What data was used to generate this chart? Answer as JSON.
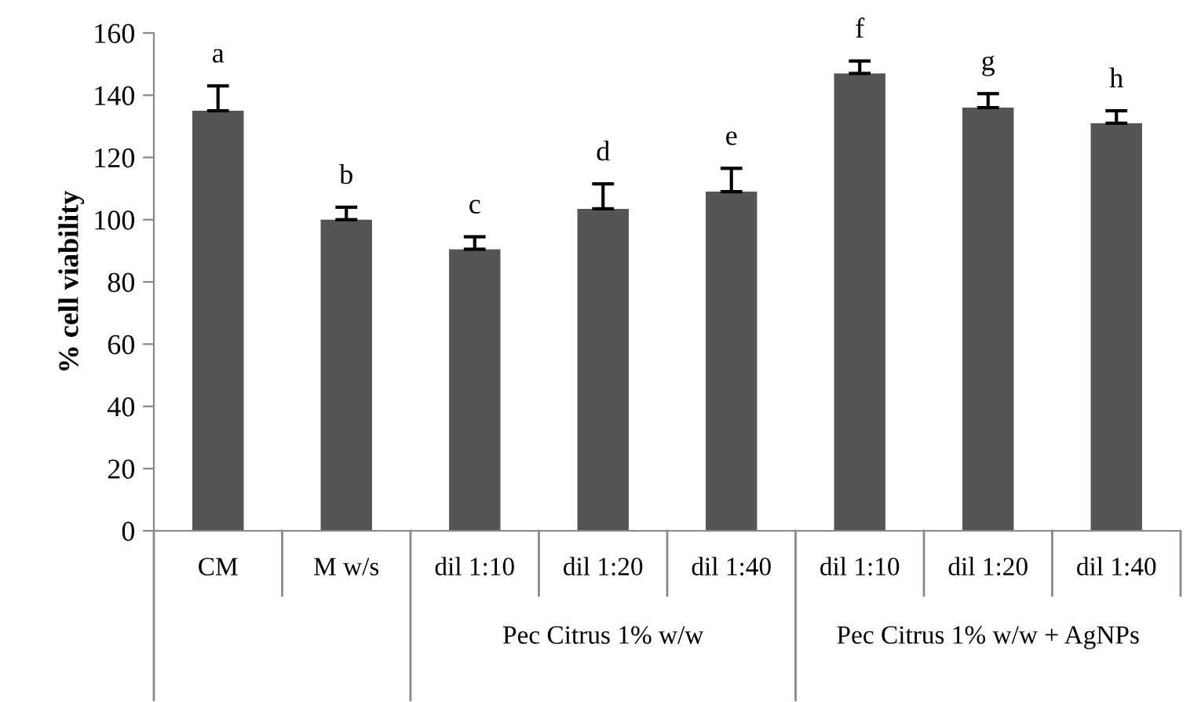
{
  "chart_data": {
    "type": "bar",
    "ylabel": "% cell viability",
    "categories": [
      "CM",
      "M w/s",
      "dil 1:10",
      "dil 1:20",
      "dil 1:40",
      "dil 1:10",
      "dil 1:20",
      "dil 1:40"
    ],
    "values": [
      135,
      100,
      90.5,
      103.5,
      109,
      147,
      136,
      131
    ],
    "errors": [
      8,
      4,
      4,
      8,
      7.5,
      4,
      4.5,
      4
    ],
    "value_labels": [
      "a",
      "b",
      "c",
      "d",
      "e",
      "f",
      "g",
      "h"
    ],
    "color": "#555555",
    "ylim": [
      0,
      160
    ],
    "yticks": [
      0,
      20,
      40,
      60,
      80,
      100,
      120,
      140,
      160
    ],
    "annotations": [
      "Pec Citrus 1% w/w",
      "Pec Citrus 1% w/w + AgNPs"
    ],
    "grid": false,
    "legend": false
  }
}
